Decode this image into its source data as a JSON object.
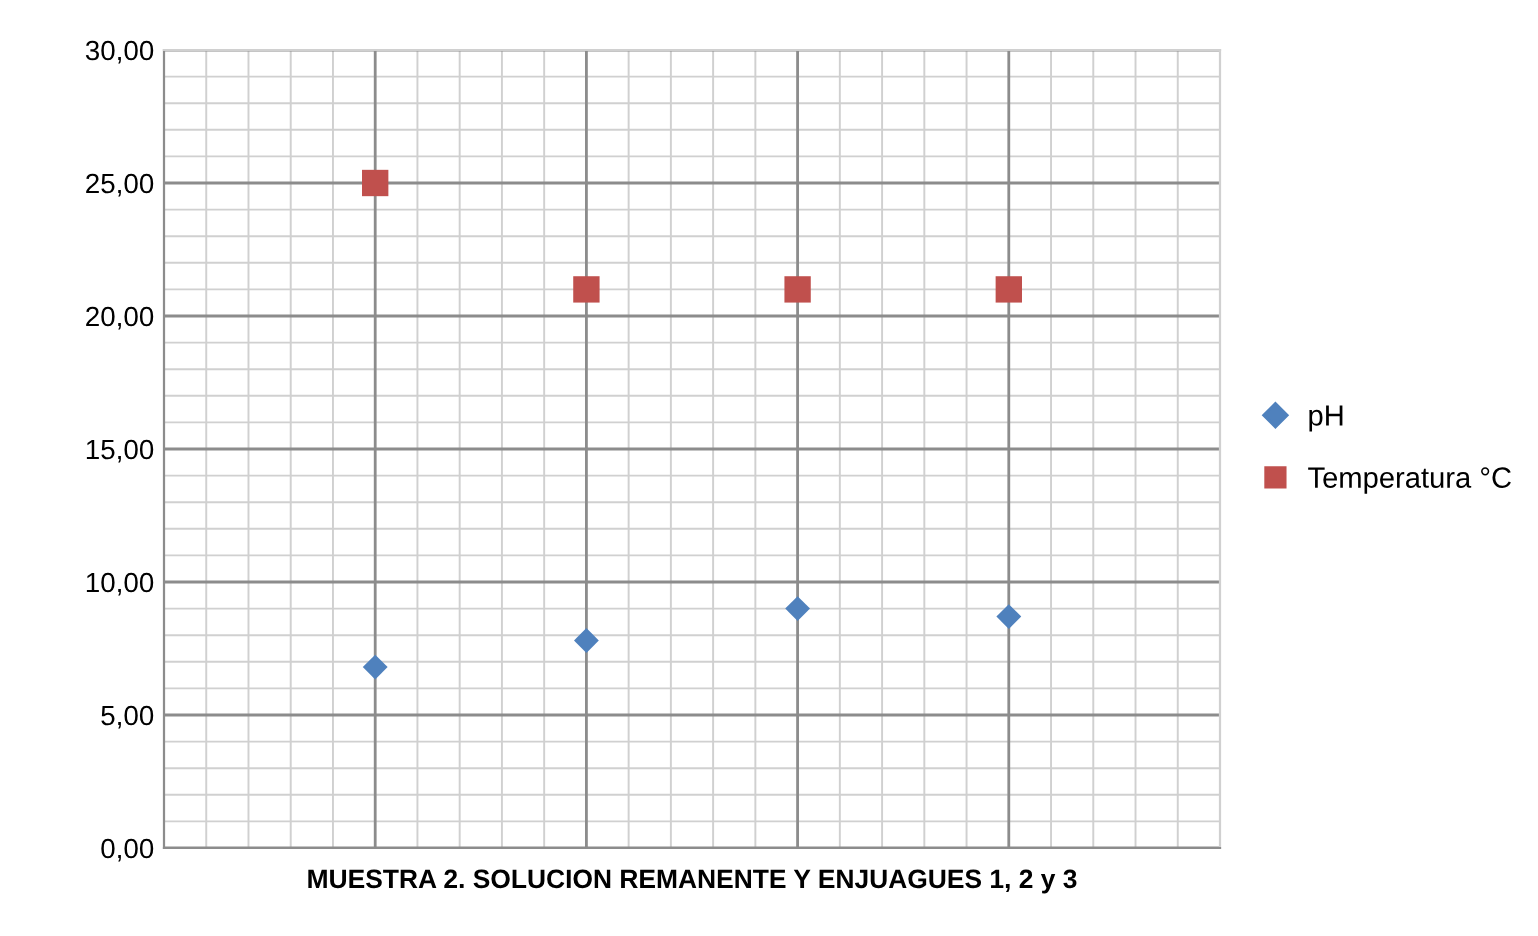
{
  "chart_data": {
    "type": "scatter",
    "xlabel": "MUESTRA 2. SOLUCION REMANENTE Y ENJUAGUES 1, 2 y 3",
    "categories": [
      null,
      null,
      null,
      null
    ],
    "series": [
      {
        "name": "pH",
        "color": "#4f81bd",
        "marker": "diamond",
        "values": [
          6.8,
          7.8,
          9.0,
          8.7
        ]
      },
      {
        "name": "Temperatura °C",
        "color": "#c0504d",
        "marker": "square",
        "values": [
          25,
          21,
          21,
          21
        ]
      }
    ],
    "ylim": [
      0,
      30
    ],
    "yticks": [
      {
        "value": 0,
        "label": "0,00"
      },
      {
        "value": 5,
        "label": "5,00"
      },
      {
        "value": 10,
        "label": "10,00"
      },
      {
        "value": 15,
        "label": "15,00"
      },
      {
        "value": 20,
        "label": "20,00"
      },
      {
        "value": 25,
        "label": "25,00"
      },
      {
        "value": 30,
        "label": "30,00"
      }
    ],
    "grid": true,
    "legend": "right"
  }
}
